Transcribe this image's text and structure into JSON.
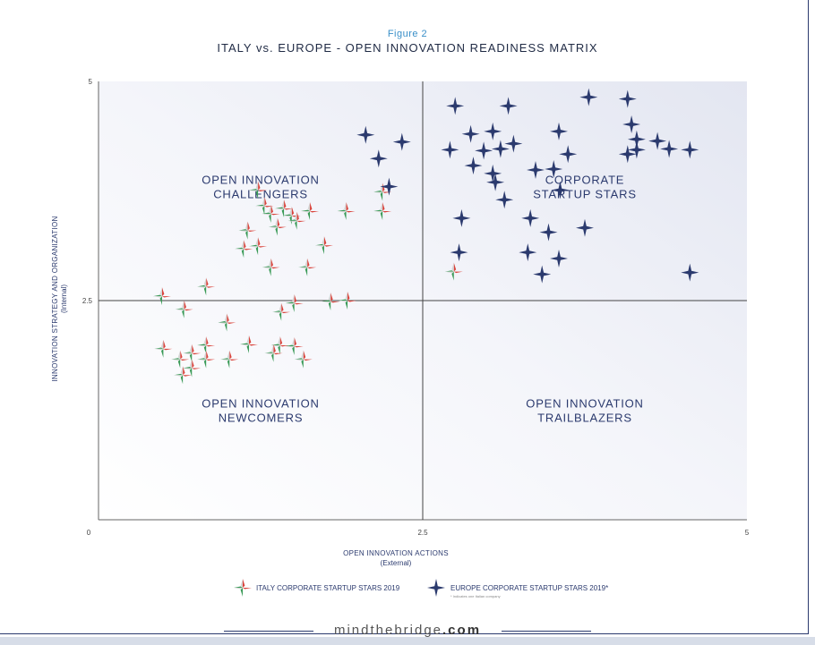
{
  "figure_label": "Figure 2",
  "title": "ITALY vs. EUROPE - OPEN INNOVATION READINESS MATRIX",
  "footer": {
    "prefix": "mindthebridge",
    "suffix": ".com"
  },
  "chart_data": {
    "type": "scatter",
    "title": "ITALY vs. EUROPE - OPEN INNOVATION READINESS MATRIX",
    "xlabel": "OPEN INNOVATION ACTIONS",
    "xlabel_sub": "(External)",
    "ylabel": "INNOVATION STRATEGY AND ORGANIZATION",
    "ylabel_sub": "(Internal)",
    "xlim": [
      0,
      5
    ],
    "ylim": [
      0,
      5
    ],
    "x_ticks": [
      "0",
      "2.5",
      "5"
    ],
    "y_ticks": [
      "2.5",
      "5"
    ],
    "divider": 2.5,
    "grid": false,
    "legend_position": "bottom-center",
    "quadrants": [
      {
        "label": [
          "OPEN INNOVATION",
          "CHALLENGERS"
        ],
        "x": 1.25,
        "y": 3.75
      },
      {
        "label": [
          "CORPORATE",
          "STARTUP STARS"
        ],
        "x": 3.75,
        "y": 3.75
      },
      {
        "label": [
          "OPEN INNOVATION",
          "NEWCOMERS"
        ],
        "x": 1.25,
        "y": 1.2
      },
      {
        "label": [
          "OPEN INNOVATION",
          "TRAILBLAZERS"
        ],
        "x": 3.75,
        "y": 1.2
      }
    ],
    "colors": {
      "europe": "#2b3a6e",
      "italy_green": "#3a9a57",
      "italy_red": "#d9433b",
      "italy_white": "#e8e8e8",
      "axis": "#555555",
      "text": "#2b3a6e"
    },
    "series": [
      {
        "name": "ITALY CORPORATE STARTUP STARS 2019",
        "marker": "italy-star",
        "points": [
          [
            0.49,
            2.55
          ],
          [
            0.66,
            2.4
          ],
          [
            0.83,
            2.66
          ],
          [
            0.5,
            1.95
          ],
          [
            0.63,
            1.83
          ],
          [
            0.72,
            1.9
          ],
          [
            0.83,
            1.99
          ],
          [
            0.65,
            1.65
          ],
          [
            0.72,
            1.73
          ],
          [
            0.83,
            1.83
          ],
          [
            1.01,
            1.83
          ],
          [
            0.99,
            2.25
          ],
          [
            1.16,
            2.0
          ],
          [
            1.4,
            1.99
          ],
          [
            1.51,
            1.98
          ],
          [
            1.35,
            1.9
          ],
          [
            1.58,
            1.83
          ],
          [
            1.41,
            2.37
          ],
          [
            1.51,
            2.47
          ],
          [
            1.79,
            2.49
          ],
          [
            1.92,
            2.5
          ],
          [
            1.33,
            2.88
          ],
          [
            1.61,
            2.88
          ],
          [
            1.74,
            3.13
          ],
          [
            1.12,
            3.09
          ],
          [
            1.23,
            3.12
          ],
          [
            1.15,
            3.3
          ],
          [
            1.38,
            3.34
          ],
          [
            1.49,
            3.47
          ],
          [
            1.63,
            3.52
          ],
          [
            1.43,
            3.55
          ],
          [
            1.28,
            3.58
          ],
          [
            1.33,
            3.49
          ],
          [
            1.53,
            3.41
          ],
          [
            1.91,
            3.52
          ],
          [
            2.19,
            3.52
          ],
          [
            2.19,
            3.74
          ],
          [
            1.23,
            3.76
          ],
          [
            2.74,
            2.83
          ]
        ]
      },
      {
        "name": "EUROPE CORPORATE STARTUP STARS 2019*",
        "note": "* Indicates one Italian company",
        "marker": "europe-star",
        "points": [
          [
            3.78,
            4.82
          ],
          [
            4.08,
            4.8
          ],
          [
            2.75,
            4.72
          ],
          [
            3.16,
            4.72
          ],
          [
            3.1,
            4.23
          ],
          [
            4.11,
            4.51
          ],
          [
            3.55,
            4.43
          ],
          [
            2.87,
            4.4
          ],
          [
            3.04,
            4.43
          ],
          [
            3.2,
            4.29
          ],
          [
            3.62,
            4.17
          ],
          [
            3.51,
            4.0
          ],
          [
            4.15,
            4.34
          ],
          [
            4.31,
            4.32
          ],
          [
            4.56,
            4.22
          ],
          [
            4.4,
            4.23
          ],
          [
            4.15,
            4.22
          ],
          [
            4.08,
            4.17
          ],
          [
            2.34,
            4.31
          ],
          [
            2.16,
            4.12
          ],
          [
            2.06,
            4.39
          ],
          [
            2.24,
            3.8
          ],
          [
            2.71,
            4.22
          ],
          [
            2.97,
            4.21
          ],
          [
            2.89,
            4.04
          ],
          [
            3.04,
            3.95
          ],
          [
            3.06,
            3.85
          ],
          [
            3.13,
            3.65
          ],
          [
            3.37,
            3.99
          ],
          [
            2.8,
            3.44
          ],
          [
            3.56,
            3.76
          ],
          [
            3.31,
            3.05
          ],
          [
            3.47,
            3.28
          ],
          [
            3.55,
            2.98
          ],
          [
            2.78,
            3.05
          ],
          [
            3.42,
            2.8
          ],
          [
            4.56,
            2.82
          ],
          [
            3.75,
            3.33
          ],
          [
            3.33,
            3.44
          ]
        ]
      }
    ]
  }
}
